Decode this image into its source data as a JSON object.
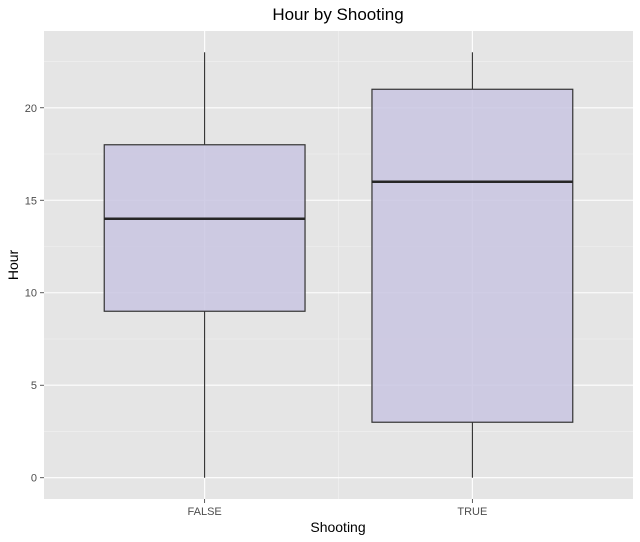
{
  "chart_data": {
    "type": "boxplot",
    "title": "Hour by Shooting",
    "xlabel": "Shooting",
    "ylabel": "Hour",
    "ylim": [
      -1.15,
      24.15
    ],
    "y_ticks": [
      0,
      5,
      10,
      15,
      20
    ],
    "y_tick_labels": [
      "0",
      "5",
      "10",
      "15",
      "20"
    ],
    "y_minor_ticks": [
      2.5,
      7.5,
      12.5,
      17.5,
      22.5
    ],
    "categories": [
      "FALSE",
      "TRUE"
    ],
    "boxes": [
      {
        "category": "FALSE",
        "min": 0,
        "q1": 9,
        "median": 14,
        "q3": 18,
        "max": 23
      },
      {
        "category": "TRUE",
        "min": 0,
        "q1": 3,
        "median": 16,
        "q3": 21,
        "max": 23
      }
    ],
    "grid": true,
    "legend": "none",
    "colors": {
      "panel_background": "#e5e5e5",
      "grid_major": "#ffffff",
      "grid_minor": "#f2f2f2",
      "box_fill": "#c9c5e2",
      "box_stroke": "#333333",
      "median_stroke": "#262626",
      "whisker": "#1a1a1a"
    }
  }
}
